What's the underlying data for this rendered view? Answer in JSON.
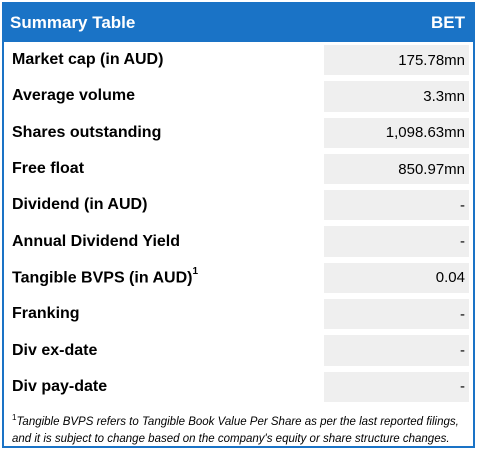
{
  "header": {
    "title": "Summary Table",
    "ticker": "BET"
  },
  "rows": [
    {
      "label": "Market cap (in AUD)",
      "value": "175.78mn"
    },
    {
      "label": "Average volume",
      "value": "3.3mn"
    },
    {
      "label": "Shares outstanding",
      "value": "1,098.63mn"
    },
    {
      "label": "Free float",
      "value": "850.97mn"
    },
    {
      "label": "Dividend (in AUD)",
      "value": "-"
    },
    {
      "label": "Annual Dividend Yield",
      "value": "-"
    },
    {
      "label": "Tangible BVPS (in AUD)",
      "sup": "1",
      "value": "0.04"
    },
    {
      "label": "Franking",
      "value": "-"
    },
    {
      "label": "Div ex-date",
      "value": "-"
    },
    {
      "label": "Div pay-date",
      "value": "-"
    }
  ],
  "footnote": {
    "marker": "1",
    "text": "Tangible BVPS refers to Tangible Book Value Per Share as per the last reported filings, and it is subject to change based on the company's equity or share structure changes."
  }
}
